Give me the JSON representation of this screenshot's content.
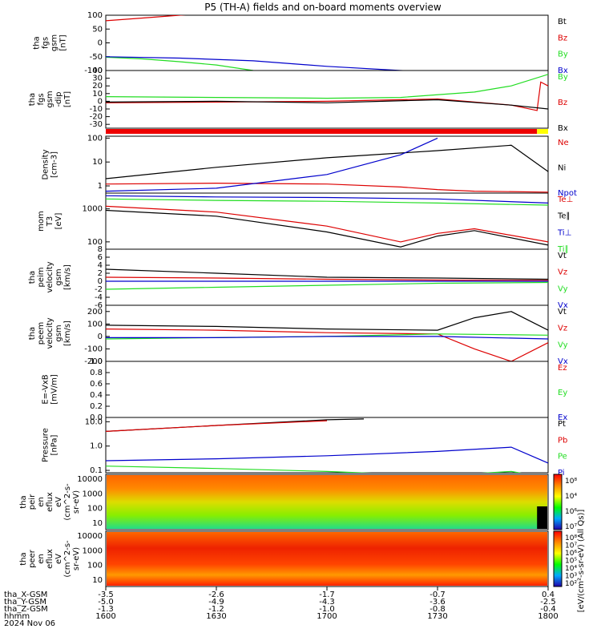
{
  "title": "P5 (TH-A) fields and on-board moments overview",
  "colors": {
    "black": "#000000",
    "red": "#dd0000",
    "green": "#22dd22",
    "blue": "#0000cc",
    "bar_red": "#ee0000",
    "bar_yellow": "#ffff00"
  },
  "chart_data": [
    {
      "type": "line",
      "panel": "fgs_gsm",
      "ylabel": [
        "tha",
        "fgs",
        "gsm",
        "[nT]"
      ],
      "yticks": [
        "100",
        "50",
        "0",
        "-50",
        "-100"
      ],
      "ylim": [
        -100,
        100
      ],
      "series": [
        {
          "name": "Bt",
          "color": "black",
          "x": [
            1600,
            1630,
            1700,
            1730,
            1800
          ],
          "y": [
            null,
            null,
            null,
            null,
            null
          ]
        },
        {
          "name": "Bz",
          "color": "red",
          "x": [
            1600,
            1610,
            1620,
            1630
          ],
          "y": [
            80,
            90,
            100,
            110
          ]
        },
        {
          "name": "By",
          "color": "green",
          "x": [
            1600,
            1610,
            1620,
            1630,
            1640
          ],
          "y": [
            -52,
            -58,
            -68,
            -80,
            -100
          ]
        },
        {
          "name": "Bx",
          "color": "blue",
          "x": [
            1600,
            1620,
            1640,
            1700,
            1720,
            1740
          ],
          "y": [
            -50,
            -55,
            -65,
            -85,
            -100,
            -110
          ]
        }
      ]
    },
    {
      "type": "line",
      "panel": "fgs_gsm_zoom",
      "ylabel": [
        "tha",
        "fgs",
        "gsm",
        "-dip",
        "[nT]"
      ],
      "yticks": [
        "40",
        "30",
        "20",
        "10",
        "0",
        "-10",
        "-20",
        "-30"
      ],
      "ylim": [
        -35,
        40
      ],
      "series": [
        {
          "name": "By",
          "color": "green",
          "x": [
            1600,
            1630,
            1700,
            1720,
            1740,
            1750,
            1800
          ],
          "y": [
            6,
            5,
            4,
            5,
            12,
            20,
            35
          ]
        },
        {
          "name": "Bz",
          "color": "red",
          "x": [
            1600,
            1630,
            1700,
            1730,
            1750,
            1757,
            1758,
            1800
          ],
          "y": [
            -2,
            -1,
            0,
            3,
            -5,
            -12,
            25,
            20
          ]
        },
        {
          "name": "Bx",
          "color": "black",
          "x": [
            1600,
            1630,
            1700,
            1730,
            1750,
            1800
          ],
          "y": [
            -1,
            0,
            -2,
            2,
            -5,
            -10
          ]
        }
      ]
    },
    {
      "type": "bar",
      "panel": "mode_bar",
      "segments": [
        {
          "from": 1600,
          "to": 1757,
          "color": "bar_red"
        },
        {
          "from": 1757,
          "to": 1800,
          "color": "bar_yellow"
        }
      ]
    },
    {
      "type": "line",
      "panel": "density",
      "scale": "log",
      "ylabel": [
        "Density",
        "[cm-3]"
      ],
      "yticks": [
        "100",
        "10",
        "1"
      ],
      "ylim": [
        0.5,
        120
      ],
      "series": [
        {
          "name": "Ne",
          "color": "red",
          "x": [
            1600,
            1630,
            1700,
            1720,
            1730,
            1740,
            1800
          ],
          "y": [
            1.2,
            1.3,
            1.2,
            0.9,
            0.7,
            0.6,
            0.55
          ]
        },
        {
          "name": "Ni",
          "color": "black",
          "x": [
            1600,
            1630,
            1700,
            1730,
            1750,
            1800
          ],
          "y": [
            2,
            6,
            15,
            30,
            50,
            4
          ]
        },
        {
          "name": "Npot",
          "color": "blue",
          "x": [
            1600,
            1630,
            1700,
            1720,
            1730
          ],
          "y": [
            0.6,
            0.8,
            3,
            20,
            100
          ]
        }
      ]
    },
    {
      "type": "line",
      "panel": "moments_temp",
      "scale": "log",
      "ylabel": [
        "mom",
        "T3",
        "[eV]"
      ],
      "yticks": [
        "1000",
        "100"
      ],
      "ylim": [
        60,
        3000
      ],
      "series": [
        {
          "name": "Te⊥",
          "color": "red",
          "x": [
            1600,
            1630,
            1700,
            1720,
            1730,
            1740,
            1800
          ],
          "y": [
            1200,
            800,
            300,
            100,
            180,
            250,
            100
          ]
        },
        {
          "name": "Te∥",
          "color": "black",
          "x": [
            1600,
            1630,
            1700,
            1720,
            1730,
            1740,
            1800
          ],
          "y": [
            900,
            600,
            200,
            70,
            150,
            220,
            80
          ]
        },
        {
          "name": "Ti⊥",
          "color": "blue",
          "x": [
            1600,
            1630,
            1700,
            1730,
            1800
          ],
          "y": [
            2500,
            2300,
            2200,
            2000,
            1500
          ]
        },
        {
          "name": "Ti∥",
          "color": "green",
          "x": [
            1600,
            1630,
            1700,
            1730,
            1800
          ],
          "y": [
            2000,
            1800,
            1700,
            1500,
            1300
          ]
        }
      ]
    },
    {
      "type": "line",
      "panel": "peim_velocity",
      "ylabel": [
        "tha",
        "peim",
        "velocity",
        "gsm",
        "[km/s]"
      ],
      "yticks": [
        "8",
        "6",
        "4",
        "2",
        "0",
        "-2",
        "-4",
        "-6"
      ],
      "ylim": [
        -6,
        8
      ],
      "series": [
        {
          "name": "Vt",
          "color": "black",
          "x": [
            1600,
            1630,
            1700,
            1730,
            1800
          ],
          "y": [
            3,
            2,
            1,
            0.8,
            0.5
          ]
        },
        {
          "name": "Vz",
          "color": "red",
          "x": [
            1600,
            1630,
            1700,
            1730,
            1800
          ],
          "y": [
            1,
            0.8,
            0.5,
            0.3,
            0.2
          ]
        },
        {
          "name": "Vy",
          "color": "green",
          "x": [
            1600,
            1630,
            1700,
            1730,
            1800
          ],
          "y": [
            -2,
            -1.5,
            -1,
            -0.5,
            -0.3
          ]
        },
        {
          "name": "Vx",
          "color": "blue",
          "x": [
            1600,
            1630,
            1700,
            1730,
            1800
          ],
          "y": [
            0,
            0,
            0,
            0,
            0
          ]
        }
      ]
    },
    {
      "type": "line",
      "panel": "peem_velocity",
      "ylabel": [
        "tha",
        "peem",
        "velocity",
        "gsm",
        "[km/s]"
      ],
      "yticks": [
        "200",
        "100",
        "0",
        "-100",
        "-200"
      ],
      "ylim": [
        -200,
        250
      ],
      "series": [
        {
          "name": "Vt",
          "color": "black",
          "x": [
            1600,
            1630,
            1700,
            1730,
            1740,
            1750,
            1800
          ],
          "y": [
            90,
            80,
            60,
            50,
            150,
            200,
            50
          ]
        },
        {
          "name": "Vz",
          "color": "red",
          "x": [
            1600,
            1630,
            1700,
            1730,
            1740,
            1750,
            1800
          ],
          "y": [
            60,
            50,
            30,
            20,
            -100,
            -200,
            -50
          ]
        },
        {
          "name": "Vy",
          "color": "green",
          "x": [
            1600,
            1630,
            1700,
            1730,
            1800
          ],
          "y": [
            -20,
            -10,
            0,
            20,
            10
          ]
        },
        {
          "name": "Vx",
          "color": "blue",
          "x": [
            1600,
            1630,
            1700,
            1730,
            1800
          ],
          "y": [
            -10,
            -10,
            0,
            0,
            -20
          ]
        }
      ]
    },
    {
      "type": "line",
      "panel": "efield",
      "ylabel": [
        "E=-VxB",
        "[mV/m]"
      ],
      "yticks": [
        "1.0",
        "0.8",
        "0.6",
        "0.4",
        "0.2",
        "0.0"
      ],
      "ylim": [
        0,
        1
      ],
      "series": [
        {
          "name": "Ez",
          "color": "red",
          "x": [],
          "y": []
        },
        {
          "name": "Ey",
          "color": "green",
          "x": [],
          "y": []
        },
        {
          "name": "Ex",
          "color": "blue",
          "x": [],
          "y": []
        }
      ]
    },
    {
      "type": "line",
      "panel": "pressure",
      "scale": "log",
      "ylabel": [
        "Pressure",
        "[nPa]"
      ],
      "yticks": [
        "10.0",
        "1.0",
        "0.1"
      ],
      "ylim": [
        0.08,
        15
      ],
      "series": [
        {
          "name": "Pt",
          "color": "black",
          "x": [
            1600,
            1630,
            1700,
            1710
          ],
          "y": [
            4,
            7,
            12,
            13
          ]
        },
        {
          "name": "Pb",
          "color": "red",
          "x": [
            1600,
            1630,
            1700
          ],
          "y": [
            4,
            7,
            11
          ]
        },
        {
          "name": "Pe",
          "color": "green",
          "x": [
            1600,
            1630,
            1700,
            1730,
            1750,
            1800
          ],
          "y": [
            0.15,
            0.12,
            0.09,
            0.06,
            0.09,
            0.05
          ]
        },
        {
          "name": "Pi",
          "color": "blue",
          "x": [
            1600,
            1630,
            1700,
            1730,
            1750,
            1800
          ],
          "y": [
            0.25,
            0.3,
            0.4,
            0.6,
            0.9,
            0.2
          ]
        }
      ]
    },
    {
      "type": "heatmap",
      "panel": "peir_eflux",
      "ylabel": [
        "tha",
        "peir",
        "en",
        "eflux",
        "eV",
        "(cm^2-s-",
        "sr-eV)"
      ],
      "yticks": [
        "10000",
        "1000",
        "100",
        "10"
      ],
      "colorbar_ticks": [
        "10⁸",
        "10⁴",
        "10⁶",
        "10⁷"
      ]
    },
    {
      "type": "heatmap",
      "panel": "peer_eflux",
      "ylabel": [
        "tha",
        "peer",
        "en",
        "eflux",
        "eV",
        "(cm^2-s-",
        "sr-eV)"
      ],
      "yticks": [
        "10000",
        "1000",
        "100",
        "10"
      ],
      "colorbar_ticks": [
        "10⁸",
        "10⁷",
        "10⁶",
        "10⁵",
        "10⁴",
        "10³",
        "10²"
      ]
    }
  ],
  "colorbar_label": "[eV/(cm²-s-sr-eV) (All Qs)]",
  "xaxis": {
    "rows": [
      {
        "label": "tha_X-GSM",
        "values": [
          "-3.5",
          "-2.6",
          "-1.7",
          "-0.7",
          "0.4"
        ]
      },
      {
        "label": "tha_Y-GSM",
        "values": [
          "-5.0",
          "-4.9",
          "-4.3",
          "-3.6",
          "-2.5"
        ]
      },
      {
        "label": "tha_Z-GSM",
        "values": [
          "-1.3",
          "-1.2",
          "-1.0",
          "-0.8",
          "-0.4"
        ]
      },
      {
        "label": "hhmm",
        "values": [
          "1600",
          "1630",
          "1700",
          "1730",
          "1800"
        ]
      }
    ],
    "date": "2024 Nov 06"
  }
}
